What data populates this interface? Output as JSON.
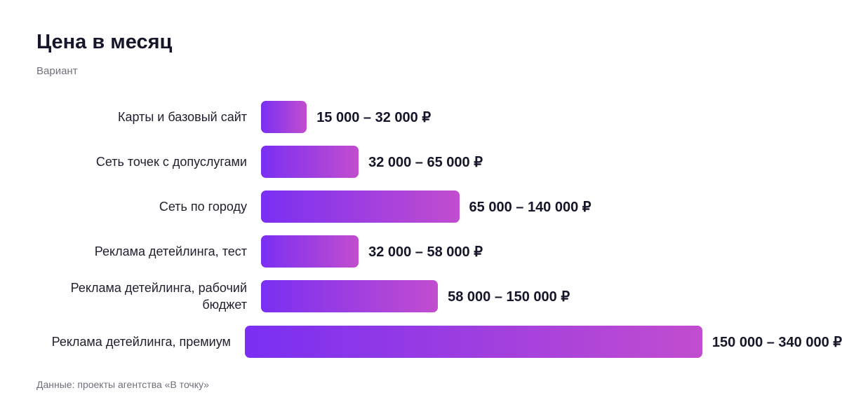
{
  "chart_data": {
    "type": "bar",
    "orientation": "horizontal",
    "title": "Цена в месяц",
    "subtitle": "Вариант",
    "categories": [
      "Карты и базовый сайт",
      "Сеть точек с допуслугами",
      "Сеть по городу",
      "Реклама детейлинга, тест",
      "Реклама детейлинга, рабочий бюджет",
      "Реклама детейлинга, премиум"
    ],
    "values": [
      15000,
      32000,
      65000,
      32000,
      58000,
      150000
    ],
    "value_labels": [
      "15 000 – 32 000 ₽",
      "32 000 – 65 000 ₽",
      "65 000 – 140 000 ₽",
      "32 000 – 58 000 ₽",
      "58 000 – 150 000 ₽",
      "150 000 – 340 000 ₽"
    ],
    "colors": [
      "#7a2ff2",
      "#c24dcf"
    ],
    "source": "Данные: проекты агентства «В точку»"
  }
}
